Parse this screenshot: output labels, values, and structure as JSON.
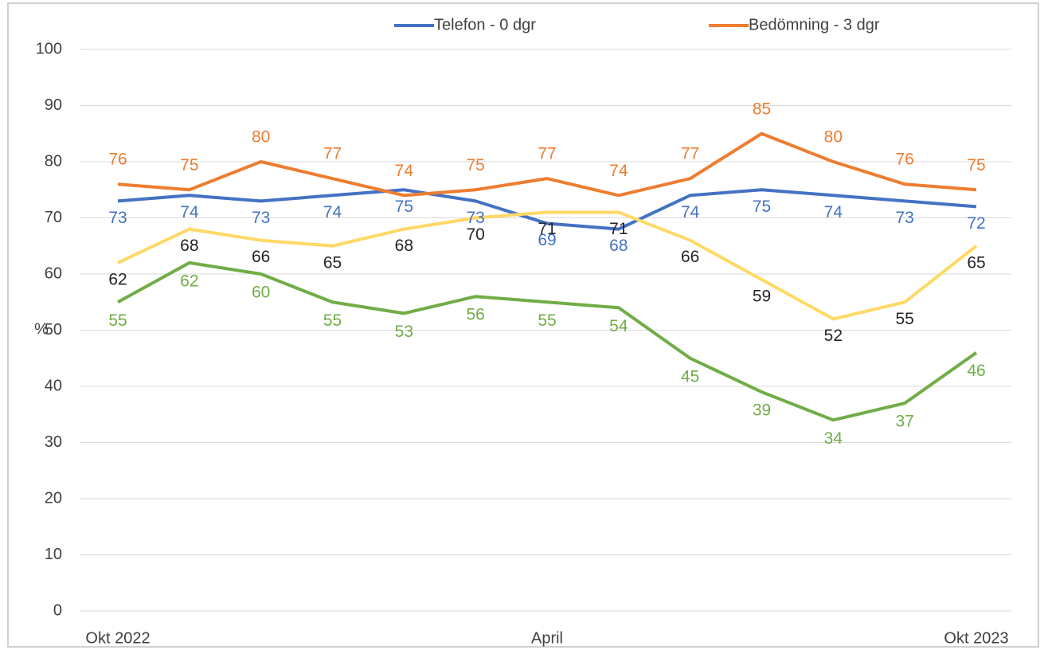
{
  "chart_data": {
    "type": "line",
    "y_label": "%",
    "categories": [
      "Okt 2022",
      null,
      null,
      null,
      null,
      null,
      "April",
      null,
      null,
      null,
      null,
      null,
      "Okt 2023"
    ],
    "ylim": [
      0,
      100
    ],
    "yticks": [
      0,
      10,
      20,
      30,
      40,
      50,
      60,
      70,
      80,
      90,
      100
    ],
    "grid": true,
    "legend": "top",
    "series": [
      {
        "name": "Telefon - 0 dgr",
        "color": "#4472c4",
        "label_color": "#4472c4",
        "values": [
          73,
          74,
          73,
          74,
          75,
          73,
          69,
          68,
          74,
          75,
          74,
          73,
          72
        ]
      },
      {
        "name": "Bedömning - 3 dgr",
        "color": "#ed7d31",
        "label_color": "#ed7d31",
        "values": [
          76,
          75,
          80,
          77,
          74,
          75,
          77,
          74,
          77,
          85,
          80,
          76,
          75
        ]
      },
      {
        "color": "#ffd966",
        "label_color": "#262626",
        "values": [
          62,
          68,
          66,
          65,
          68,
          70,
          71,
          71,
          66,
          59,
          52,
          55,
          65
        ]
      },
      {
        "color": "#70ad47",
        "label_color": "#70ad47",
        "values": [
          55,
          62,
          60,
          55,
          53,
          56,
          55,
          54,
          45,
          39,
          34,
          37,
          46
        ]
      }
    ]
  }
}
